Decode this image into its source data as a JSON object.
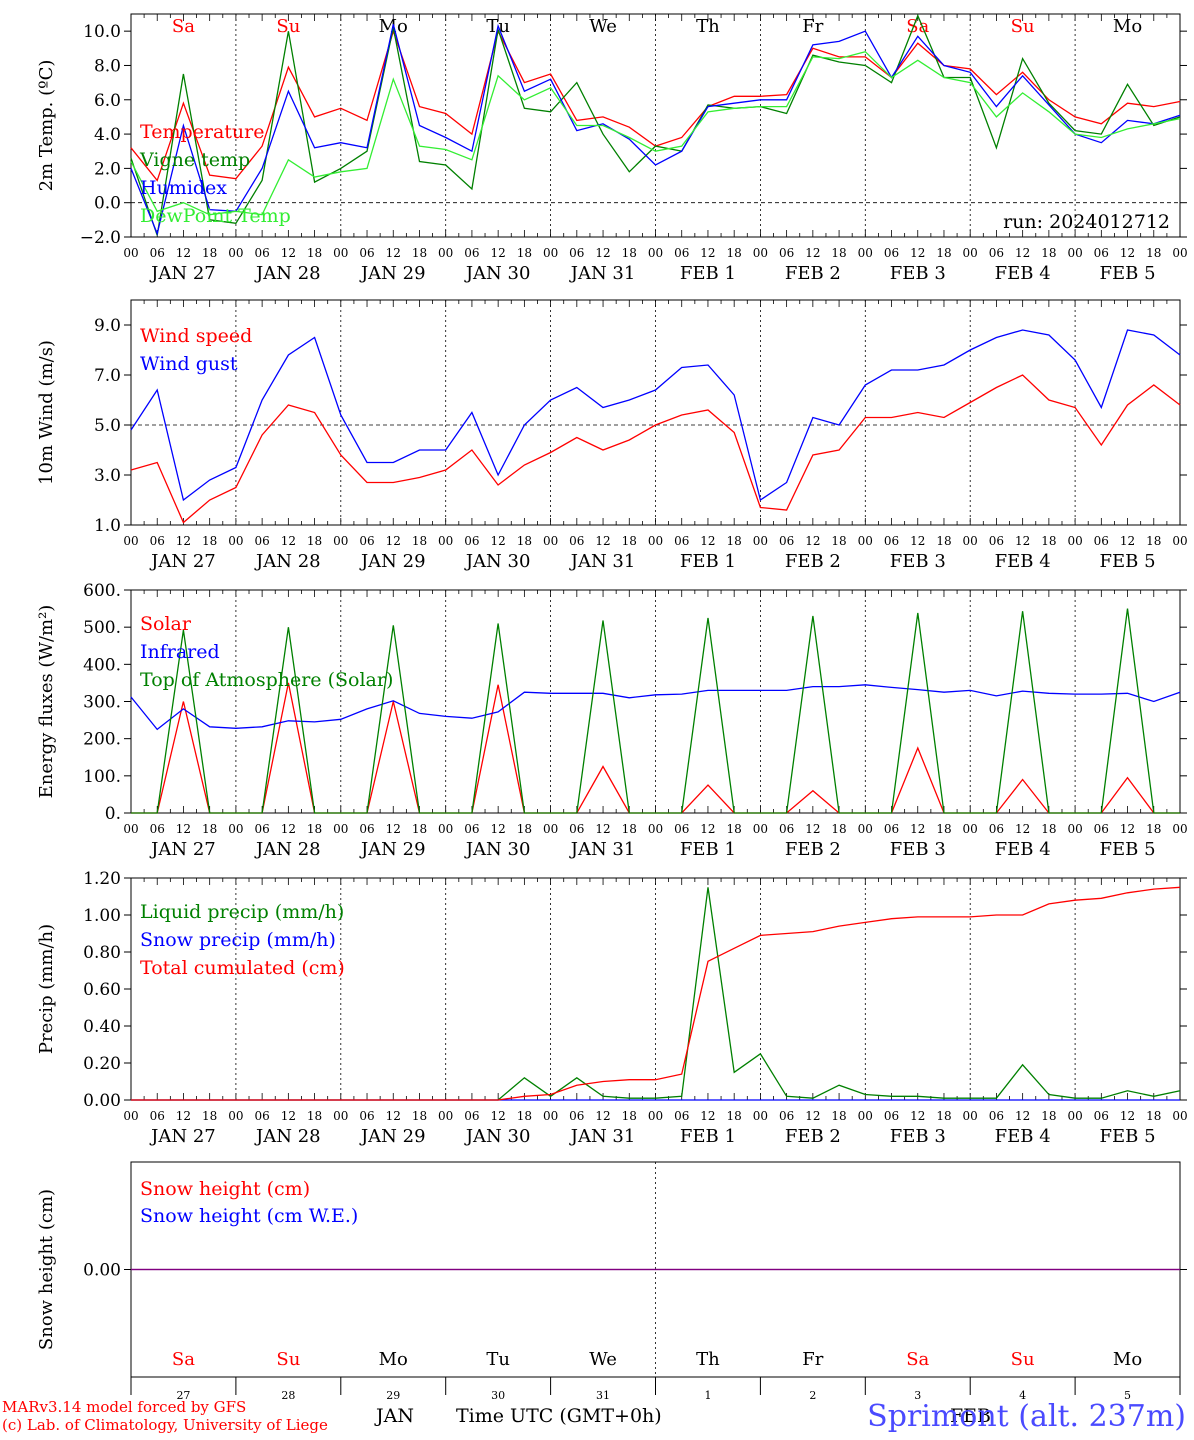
{
  "days": [
    {
      "date_label": "JAN 27",
      "weekday": "Sa",
      "weekend": true,
      "daynum": "27"
    },
    {
      "date_label": "JAN 28",
      "weekday": "Su",
      "weekend": true,
      "daynum": "28"
    },
    {
      "date_label": "JAN 29",
      "weekday": "Mo",
      "weekend": false,
      "daynum": "29"
    },
    {
      "date_label": "JAN 30",
      "weekday": "Tu",
      "weekend": false,
      "daynum": "30"
    },
    {
      "date_label": "JAN 31",
      "weekday": "We",
      "weekend": false,
      "daynum": "31"
    },
    {
      "date_label": "FEB  1",
      "weekday": "Th",
      "weekend": false,
      "daynum": "1"
    },
    {
      "date_label": "FEB  2",
      "weekday": "Fr",
      "weekend": false,
      "daynum": "2"
    },
    {
      "date_label": "FEB  3",
      "weekday": "Sa",
      "weekend": true,
      "daynum": "3"
    },
    {
      "date_label": "FEB  4",
      "weekday": "Su",
      "weekend": true,
      "daynum": "4"
    },
    {
      "date_label": "FEB  5",
      "weekday": "Mo",
      "weekend": false,
      "daynum": "5"
    }
  ],
  "hour_ticks": [
    "00",
    "06",
    "12",
    "18"
  ],
  "colors": {
    "red": "#ff0000",
    "green": "#008000",
    "blue": "#0000ff",
    "lightgreen": "#33ee33",
    "purple": "#800080",
    "weekend": "#ff0000",
    "weekday": "#000000"
  },
  "footer": {
    "model": "MARv3.14 model forced by GFS",
    "credit": "(c) Lab. of Climatology, University of Liege",
    "xlabel": "Time UTC (GMT+0h)",
    "month_jan": "JAN",
    "month_feb": "FEB",
    "station": "Sprimont (alt. 237m)"
  },
  "chart_data": [
    {
      "type": "line",
      "ylabel": "2m Temp. (ºC)",
      "ylim": [
        -2.0,
        11.0
      ],
      "yticks": [
        -2.0,
        0.0,
        2.0,
        4.0,
        6.0,
        8.0,
        10.0
      ],
      "ytick_labels": [
        "−2.0",
        "0.0",
        "2.0",
        "4.0",
        "6.0",
        "8.0",
        "10.0"
      ],
      "annotation": "run: 2024012712",
      "x_hours": [
        0,
        6,
        12,
        18,
        24,
        30,
        36,
        42,
        48,
        54,
        60,
        66,
        72,
        78,
        84,
        90,
        96,
        102,
        108,
        114,
        120,
        126,
        132,
        138,
        144,
        150,
        156,
        162,
        168,
        174,
        180,
        186,
        192,
        198,
        204,
        210,
        216,
        222,
        228,
        234,
        240
      ],
      "series": [
        {
          "name": "Temperature",
          "color": "red",
          "values": [
            3.2,
            1.3,
            5.8,
            1.6,
            1.4,
            3.3,
            7.9,
            5.0,
            5.5,
            4.8,
            10.0,
            5.6,
            5.2,
            4.0,
            10.0,
            7.0,
            7.5,
            4.8,
            5.0,
            4.4,
            3.3,
            3.8,
            5.6,
            6.2,
            6.2,
            6.3,
            9.0,
            8.5,
            8.5,
            7.3,
            9.3,
            8.0,
            7.8,
            6.3,
            7.6,
            6.0,
            5.0,
            4.6,
            5.8,
            5.6,
            5.9
          ]
        },
        {
          "name": "Vigne temp",
          "color": "green",
          "values": [
            2.6,
            -1.9,
            7.5,
            -1.0,
            -1.2,
            1.3,
            10.0,
            1.2,
            2.0,
            3.0,
            10.2,
            2.4,
            2.2,
            0.8,
            10.1,
            5.5,
            5.3,
            7.0,
            4.0,
            1.8,
            3.3,
            3.0,
            5.7,
            5.5,
            5.6,
            5.2,
            8.6,
            8.2,
            8.0,
            7.0,
            10.9,
            7.3,
            7.3,
            3.2,
            8.4,
            5.8,
            4.2,
            4.0,
            6.9,
            4.5,
            5.0
          ]
        },
        {
          "name": "Humidex",
          "color": "blue",
          "values": [
            2.0,
            -1.8,
            4.5,
            -0.4,
            -0.5,
            2.0,
            6.5,
            3.2,
            3.5,
            3.2,
            10.4,
            4.5,
            3.8,
            3.0,
            10.3,
            6.5,
            7.2,
            4.2,
            4.6,
            3.7,
            2.2,
            3.0,
            5.6,
            5.8,
            6.0,
            6.0,
            9.2,
            9.4,
            10.0,
            7.3,
            9.7,
            8.0,
            7.6,
            5.6,
            7.4,
            5.7,
            4.0,
            3.5,
            4.8,
            4.6,
            5.1
          ]
        },
        {
          "name": "DewPoint Temp",
          "color": "lightgreen",
          "values": [
            2.4,
            -0.5,
            0.0,
            -0.7,
            -0.5,
            -0.7,
            2.5,
            1.5,
            1.8,
            2.0,
            7.2,
            3.3,
            3.1,
            2.5,
            7.4,
            6.0,
            6.7,
            4.5,
            4.5,
            3.8,
            3.0,
            3.3,
            5.3,
            5.5,
            5.6,
            5.6,
            8.5,
            8.4,
            8.8,
            7.3,
            8.3,
            7.3,
            7.0,
            5.0,
            6.4,
            5.3,
            4.0,
            3.8,
            4.3,
            4.6,
            4.9
          ]
        }
      ]
    },
    {
      "type": "line",
      "ylabel": "10m Wind (m/s)",
      "ylim": [
        1.0,
        10.0
      ],
      "yticks": [
        1.0,
        3.0,
        5.0,
        7.0,
        9.0
      ],
      "ytick_labels": [
        "1.0",
        "3.0",
        "5.0",
        "7.0",
        "9.0"
      ],
      "ref_lines": [
        5.0
      ],
      "x_hours": [
        0,
        6,
        12,
        18,
        24,
        30,
        36,
        42,
        48,
        54,
        60,
        66,
        72,
        78,
        84,
        90,
        96,
        102,
        108,
        114,
        120,
        126,
        132,
        138,
        144,
        150,
        156,
        162,
        168,
        174,
        180,
        186,
        192,
        198,
        204,
        210,
        216,
        222,
        228,
        234,
        240
      ],
      "series": [
        {
          "name": "Wind speed",
          "color": "red",
          "values": [
            3.2,
            3.5,
            1.1,
            2.0,
            2.5,
            4.6,
            5.8,
            5.5,
            3.8,
            2.7,
            2.7,
            2.9,
            3.2,
            4.0,
            2.6,
            3.4,
            3.9,
            4.5,
            4.0,
            4.4,
            5.0,
            5.4,
            5.6,
            4.7,
            1.7,
            1.6,
            3.8,
            4.0,
            5.3,
            5.3,
            5.5,
            5.3,
            5.9,
            6.5,
            7.0,
            6.0,
            5.7,
            4.2,
            5.8,
            6.6,
            5.8
          ]
        },
        {
          "name": "Wind gust",
          "color": "blue",
          "values": [
            4.8,
            6.4,
            2.0,
            2.8,
            3.3,
            6.0,
            7.8,
            8.5,
            5.4,
            3.5,
            3.5,
            4.0,
            4.0,
            5.5,
            3.0,
            5.0,
            6.0,
            6.5,
            5.7,
            6.0,
            6.4,
            7.3,
            7.4,
            6.2,
            2.0,
            2.7,
            5.3,
            5.0,
            6.6,
            7.2,
            7.2,
            7.4,
            8.0,
            8.5,
            8.8,
            8.6,
            7.6,
            5.7,
            8.8,
            8.6,
            7.8
          ]
        }
      ]
    },
    {
      "type": "line",
      "ylabel": "Energy fluxes (W/m²)",
      "ylim": [
        0,
        600
      ],
      "yticks": [
        0,
        100,
        200,
        300,
        400,
        500,
        600
      ],
      "ytick_labels": [
        "0.",
        "100.",
        "200.",
        "300.",
        "400.",
        "500.",
        "600."
      ],
      "x_hours": [
        0,
        6,
        12,
        18,
        24,
        30,
        36,
        42,
        48,
        54,
        60,
        66,
        72,
        78,
        84,
        90,
        96,
        102,
        108,
        114,
        120,
        126,
        132,
        138,
        144,
        150,
        156,
        162,
        168,
        174,
        180,
        186,
        192,
        198,
        204,
        210,
        216,
        222,
        228,
        234,
        240
      ],
      "series": [
        {
          "name": "Solar",
          "color": "red",
          "values": [
            0,
            0,
            300,
            0,
            0,
            0,
            350,
            0,
            0,
            0,
            300,
            0,
            0,
            0,
            345,
            0,
            0,
            0,
            125,
            0,
            0,
            0,
            75,
            0,
            0,
            0,
            60,
            0,
            0,
            0,
            175,
            0,
            0,
            0,
            90,
            0,
            0,
            0,
            95,
            0,
            0
          ]
        },
        {
          "name": "Infrared",
          "color": "blue",
          "values": [
            312,
            225,
            280,
            232,
            228,
            232,
            248,
            245,
            252,
            280,
            302,
            268,
            260,
            255,
            272,
            325,
            322,
            322,
            322,
            310,
            318,
            320,
            330,
            330,
            330,
            330,
            340,
            340,
            345,
            338,
            332,
            325,
            330,
            315,
            328,
            322,
            320,
            320,
            322,
            300,
            325
          ]
        },
        {
          "name": "Top of Atmosphere (Solar)",
          "color": "green",
          "values": [
            0,
            0,
            492,
            0,
            0,
            0,
            500,
            0,
            0,
            0,
            505,
            0,
            0,
            0,
            510,
            0,
            0,
            0,
            518,
            0,
            0,
            0,
            525,
            0,
            0,
            0,
            530,
            0,
            0,
            0,
            538,
            0,
            0,
            0,
            543,
            0,
            0,
            0,
            550,
            0,
            0
          ]
        }
      ]
    },
    {
      "type": "line",
      "ylabel": "Precip (mm/h)",
      "ylim": [
        0.0,
        1.2
      ],
      "yticks": [
        0.0,
        0.2,
        0.4,
        0.6,
        0.8,
        1.0,
        1.2
      ],
      "ytick_labels": [
        "0.00",
        "0.20",
        "0.40",
        "0.60",
        "0.80",
        "1.00",
        "1.20"
      ],
      "x_hours": [
        0,
        6,
        12,
        18,
        24,
        30,
        36,
        42,
        48,
        54,
        60,
        66,
        72,
        78,
        84,
        90,
        96,
        102,
        108,
        114,
        120,
        126,
        132,
        138,
        144,
        150,
        156,
        162,
        168,
        174,
        180,
        186,
        192,
        198,
        204,
        210,
        216,
        222,
        228,
        234,
        240
      ],
      "series": [
        {
          "name": "Liquid precip (mm/h)",
          "color": "green",
          "values": [
            0,
            0,
            0,
            0,
            0,
            0,
            0,
            0,
            0,
            0,
            0,
            0,
            0,
            0,
            0,
            0.12,
            0.02,
            0.12,
            0.02,
            0.01,
            0.01,
            0.02,
            1.15,
            0.15,
            0.25,
            0.02,
            0.01,
            0.08,
            0.03,
            0.02,
            0.02,
            0.01,
            0.01,
            0.01,
            0.19,
            0.03,
            0.01,
            0.01,
            0.05,
            0.02,
            0.05
          ]
        },
        {
          "name": "Snow precip (mm/h)",
          "color": "blue",
          "values": [
            0,
            0,
            0,
            0,
            0,
            0,
            0,
            0,
            0,
            0,
            0,
            0,
            0,
            0,
            0,
            0,
            0,
            0,
            0,
            0,
            0,
            0,
            0,
            0,
            0,
            0,
            0,
            0,
            0,
            0,
            0,
            0,
            0,
            0,
            0,
            0,
            0,
            0,
            0,
            0,
            0
          ]
        },
        {
          "name": "Total cumulated (cm)",
          "color": "red",
          "values": [
            0,
            0,
            0,
            0,
            0,
            0,
            0,
            0,
            0,
            0,
            0,
            0,
            0,
            0,
            0,
            0.02,
            0.03,
            0.08,
            0.1,
            0.11,
            0.11,
            0.14,
            0.75,
            0.82,
            0.89,
            0.9,
            0.91,
            0.94,
            0.96,
            0.98,
            0.99,
            0.99,
            0.99,
            1.0,
            1.0,
            1.06,
            1.08,
            1.09,
            1.12,
            1.14,
            1.15
          ]
        }
      ]
    },
    {
      "type": "line",
      "ylabel": "Snow height (cm)",
      "ylim": [
        -1.0,
        1.0
      ],
      "yticks": [
        0.0
      ],
      "ytick_labels": [
        "0.00"
      ],
      "x_hours": [
        0,
        240
      ],
      "series": [
        {
          "name": "Snow height (cm)",
          "color": "red",
          "values": [
            0,
            0
          ]
        },
        {
          "name": "Snow height (cm W.E.)",
          "color": "blue",
          "values": [
            0,
            0
          ]
        }
      ]
    }
  ]
}
